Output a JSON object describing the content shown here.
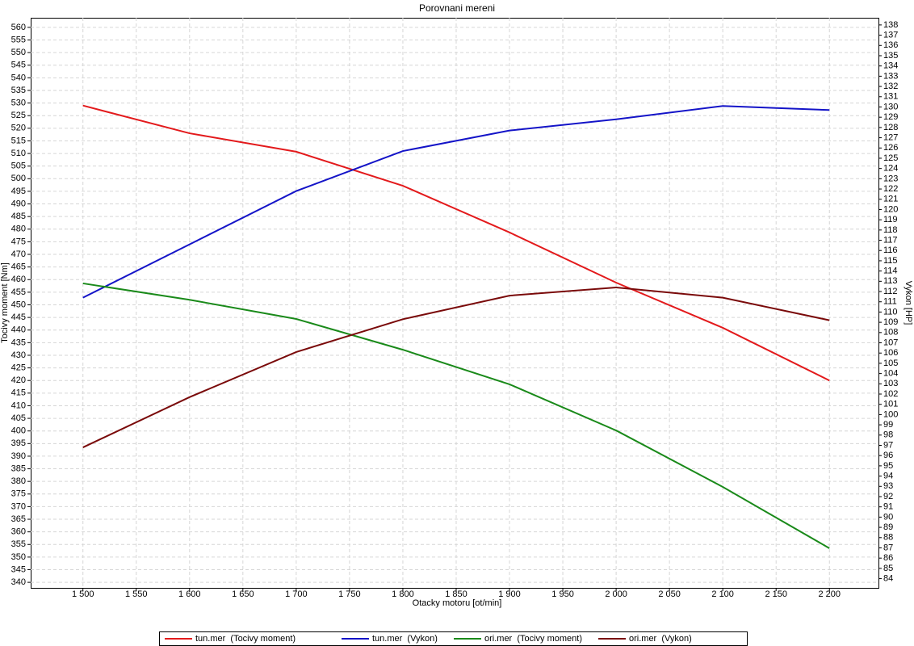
{
  "chart_data": {
    "type": "line",
    "title": "Porovnani mereni",
    "x_label": "Otacky motoru [ot/min]",
    "y_label": "Tocivy moment [Nm]",
    "y2_label": "Vykon [HP]",
    "x": [
      1500,
      1600,
      1700,
      1800,
      1900,
      2000,
      2100,
      2200
    ],
    "series": [
      {
        "name": "tun.mer  (Tocivy moment)",
        "color": "#e31a1c",
        "values": [
          529,
          518,
          510.7,
          497.2,
          478.7,
          458.8,
          440.9,
          420
        ]
      },
      {
        "name": "tun.mer  (Vykon)",
        "color": "#1414c8",
        "axis": "y2",
        "values": [
          111.4,
          116.6,
          121.8,
          125.7,
          127.7,
          128.8,
          130.1,
          129.7
        ]
      },
      {
        "name": "ori.mer  (Tocivy moment)",
        "color": "#1a8a1a",
        "values": [
          458.5,
          452,
          444.4,
          432.2,
          418.5,
          400.2,
          377.8,
          353.5
        ]
      },
      {
        "name": "ori.mer  (Vykon)",
        "color": "#7a0a0a",
        "axis": "y2",
        "values": [
          96.8,
          101.7,
          106.1,
          109.3,
          111.6,
          112.4,
          111.4,
          109.2
        ]
      }
    ],
    "xlim": [
      1451,
      2246
    ],
    "xticks": [
      {
        "value": 1500,
        "label": "1 500"
      },
      {
        "value": 1550,
        "label": "1 550"
      },
      {
        "value": 1600,
        "label": "1 600"
      },
      {
        "value": 1650,
        "label": "1 650"
      },
      {
        "value": 1700,
        "label": "1 700"
      },
      {
        "value": 1750,
        "label": "1 750"
      },
      {
        "value": 1800,
        "label": "1 800"
      },
      {
        "value": 1850,
        "label": "1 850"
      },
      {
        "value": 1900,
        "label": "1 900"
      },
      {
        "value": 1950,
        "label": "1 950"
      },
      {
        "value": 2000,
        "label": "2 000"
      },
      {
        "value": 2050,
        "label": "2 050"
      },
      {
        "value": 2100,
        "label": "2 100"
      },
      {
        "value": 2150,
        "label": "2 150"
      },
      {
        "value": 2200,
        "label": "2 200"
      }
    ],
    "ylim": [
      337.8,
      563.8
    ],
    "yticks": [
      340,
      345,
      350,
      355,
      360,
      365,
      370,
      375,
      380,
      385,
      390,
      395,
      400,
      405,
      410,
      415,
      420,
      425,
      430,
      435,
      440,
      445,
      450,
      455,
      460,
      465,
      470,
      475,
      480,
      485,
      490,
      495,
      500,
      505,
      510,
      515,
      520,
      525,
      530,
      535,
      540,
      545,
      550,
      555,
      560
    ],
    "y2lim": [
      83.1,
      138.7
    ],
    "y2ticks": [
      84,
      85,
      86,
      87,
      88,
      89,
      90,
      91,
      92,
      93,
      94,
      95,
      96,
      97,
      98,
      99,
      100,
      101,
      102,
      103,
      104,
      105,
      106,
      107,
      108,
      109,
      110,
      111,
      112,
      113,
      114,
      115,
      116,
      117,
      118,
      119,
      120,
      121,
      122,
      123,
      124,
      125,
      126,
      127,
      128,
      129,
      130,
      131,
      132,
      133,
      134,
      135,
      136,
      137,
      138
    ],
    "grid": true,
    "legend": "bottom"
  }
}
